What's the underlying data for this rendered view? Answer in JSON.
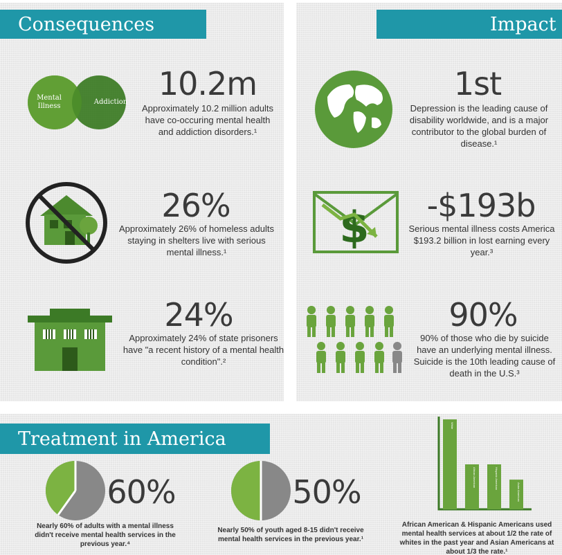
{
  "consequences": {
    "title": "Consequences",
    "items": [
      {
        "icon": "venn-diagram-icon",
        "venn_left": "Mental Illness",
        "venn_right": "Addiction",
        "stat": "10.2m",
        "text": "Approximately 10.2 million adults have co-occuring mental health and addiction disorders.¹"
      },
      {
        "icon": "no-homes-icon",
        "stat": "26%",
        "text": "Approximately 26% of homeless adults staying in shelters live with serious mental illness.¹"
      },
      {
        "icon": "prison-icon",
        "stat": "24%",
        "text": "Approximately 24% of state prisoners have \"a recent history of a mental health condition\".²"
      }
    ]
  },
  "impact": {
    "title": "Impact",
    "items": [
      {
        "icon": "globe-icon",
        "stat": "1st",
        "text": "Depression is the leading cause of disability worldwide, and is a major contributor to the global burden of disease.¹"
      },
      {
        "icon": "money-decline-icon",
        "stat": "-$193b",
        "text": "Serious mental illness costs America $193.2 billion in lost earning every year.³"
      },
      {
        "icon": "people-group-icon",
        "stat": "90%",
        "text": "90% of those who die by suicide have an underlying mental illness. Suicide is the 10th leading cause of death in the U.S.³"
      }
    ]
  },
  "treatment": {
    "title": "Treatment in America",
    "items": [
      {
        "icon": "pie-60-icon",
        "stat": "60%",
        "text": "Nearly 60% of adults with a mental illness didn't receive mental health services in the previous year.⁴"
      },
      {
        "icon": "pie-50-icon",
        "stat": "50%",
        "text": "Nearly 50% of youth aged 8-15 didn't receive mental health services in the previous year.¹"
      },
      {
        "icon": "bar-chart-icon",
        "text": "African American & Hispanic Americans used mental health services at about 1/2 the rate of whites in the past year and Asian Americans at about 1/3 the rate.¹"
      }
    ],
    "bars": [
      {
        "label": "White",
        "value": 1.0
      },
      {
        "label": "African American",
        "value": 0.5
      },
      {
        "label": "Hispanic American",
        "value": 0.5
      },
      {
        "label": "Asian American",
        "value": 0.33
      }
    ]
  },
  "colors": {
    "teal": "#1f97a8",
    "green": "#5a9a3a",
    "light_green": "#7cb342",
    "dark_green": "#3c7a26"
  }
}
